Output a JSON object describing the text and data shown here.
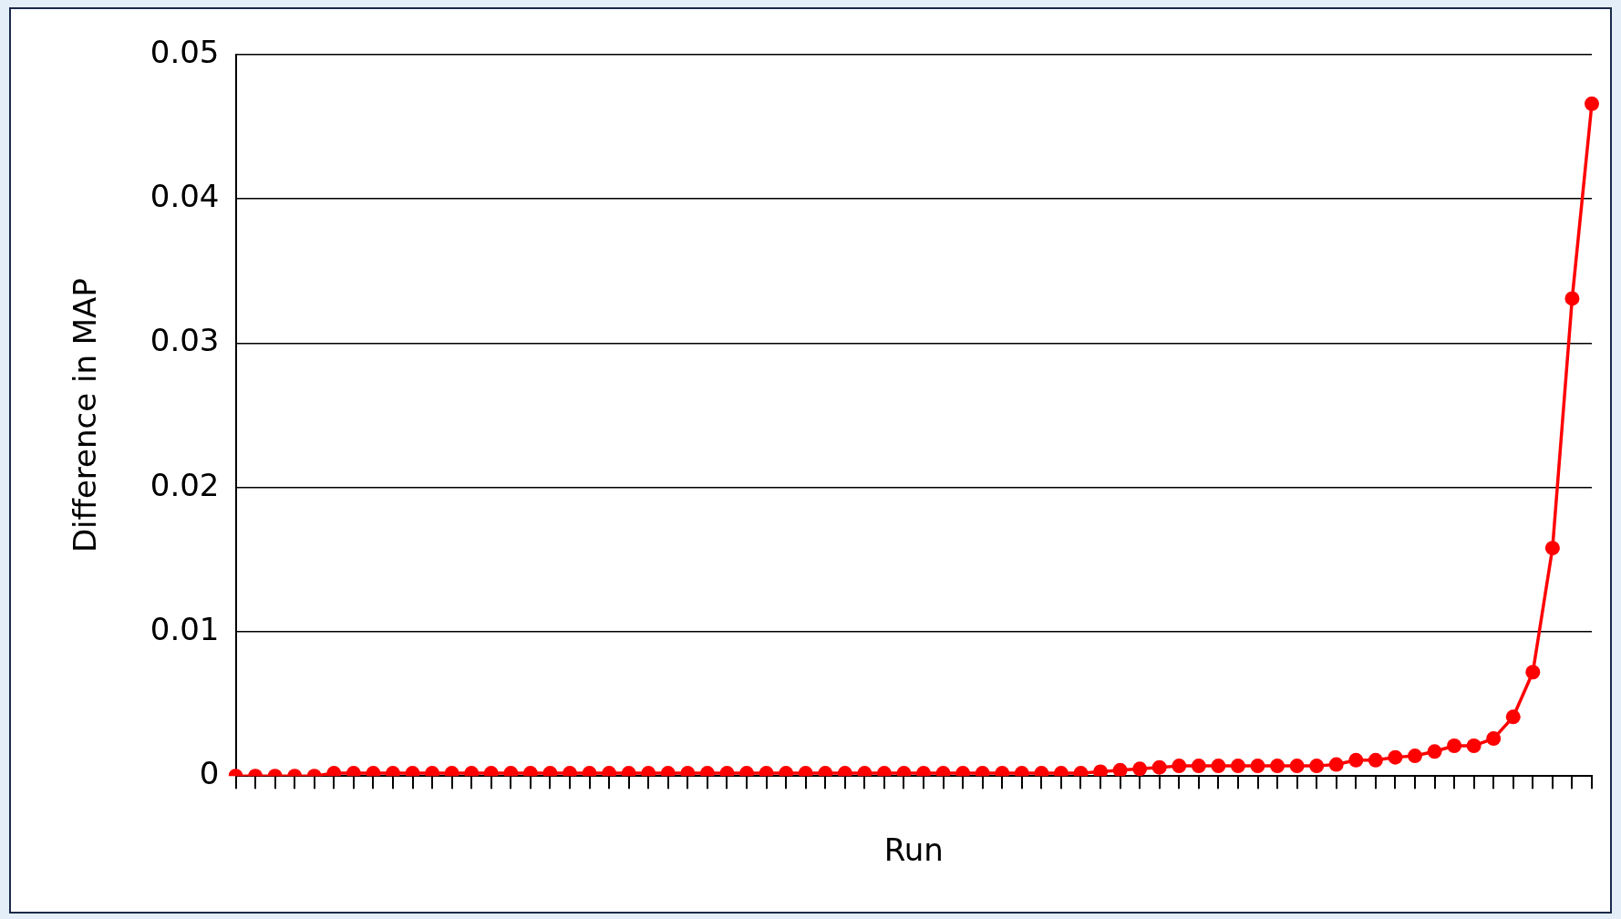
{
  "chart_data": {
    "type": "line",
    "xlabel": "Run",
    "ylabel": "Difference in MAP",
    "categories": [
      null,
      null,
      null,
      null,
      null,
      null,
      null,
      null,
      null,
      null,
      null,
      null,
      null,
      null,
      null,
      null,
      null,
      null,
      null,
      null,
      null,
      null,
      null,
      null,
      null,
      null,
      null,
      null,
      null,
      null,
      null,
      null,
      null,
      null,
      null,
      null,
      null,
      null,
      null,
      null,
      null,
      null,
      null,
      null,
      null,
      null,
      null,
      null,
      null,
      null,
      null,
      null,
      null,
      null,
      null,
      null,
      null,
      null,
      null,
      null,
      null,
      null,
      null,
      null,
      null,
      null,
      null,
      null,
      null,
      null
    ],
    "series": [
      {
        "color": "#ff0000",
        "values": [
          0,
          0,
          0,
          0,
          0,
          0.0002,
          0.0002,
          0.0002,
          0.0002,
          0.0002,
          0.0002,
          0.0002,
          0.0002,
          0.0002,
          0.0002,
          0.0002,
          0.0002,
          0.0002,
          0.0002,
          0.0002,
          0.0002,
          0.0002,
          0.0002,
          0.0002,
          0.0002,
          0.0002,
          0.0002,
          0.0002,
          0.0002,
          0.0002,
          0.0002,
          0.0002,
          0.0002,
          0.0002,
          0.0002,
          0.0002,
          0.0002,
          0.0002,
          0.0002,
          0.0002,
          0.0002,
          0.0002,
          0.0002,
          0.0002,
          0.0003,
          0.0004,
          0.0005,
          0.0006,
          0.0007,
          0.0007,
          0.0007,
          0.0007,
          0.0007,
          0.0007,
          0.0007,
          0.0007,
          0.0008,
          0.0011,
          0.0011,
          0.0013,
          0.0014,
          0.0017,
          0.0021,
          0.0021,
          0.0026,
          0.0041,
          0.0072,
          0.0158,
          0.0331,
          0.0466
        ]
      }
    ],
    "ylim": [
      0,
      0.05
    ],
    "yticks": [
      0,
      0.01,
      0.02,
      0.03,
      0.04,
      0.05
    ],
    "grid": "y",
    "legend": false,
    "marker": "circle",
    "line_style": "solid",
    "tick_labels": "y"
  }
}
